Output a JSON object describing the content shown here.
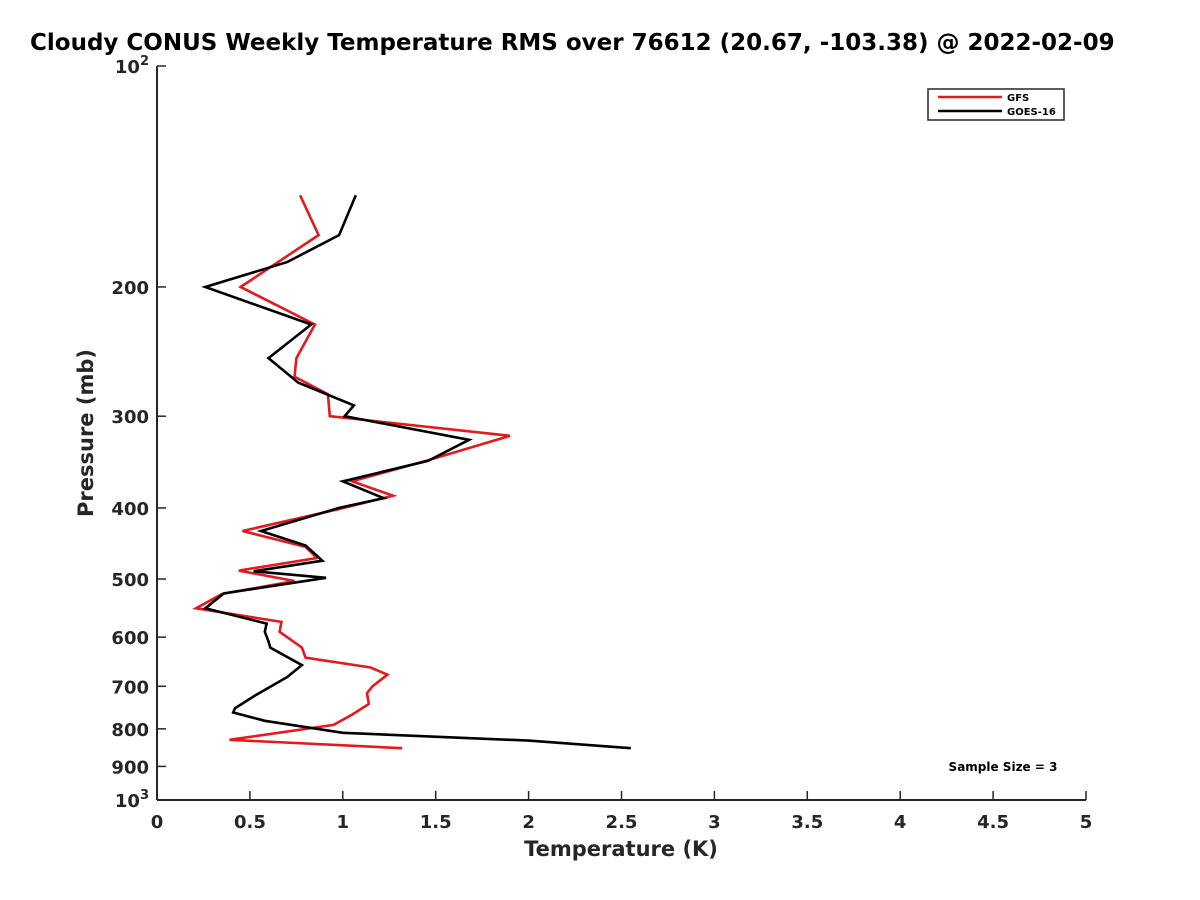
{
  "chart_data": {
    "type": "line",
    "title": "Cloudy CONUS Weekly Temperature RMS over 76612 (20.67, -103.38) @ 2022-02-09",
    "xlabel": "Temperature (K)",
    "ylabel": "Pressure (mb)",
    "xlim": [
      0,
      5
    ],
    "ylim": [
      1000,
      100
    ],
    "y_scale": "log",
    "y_reversed": true,
    "grid": false,
    "legend_position": "top-right",
    "x_ticks": [
      {
        "value": 0,
        "label": "0"
      },
      {
        "value": 0.5,
        "label": "0.5"
      },
      {
        "value": 1,
        "label": "1"
      },
      {
        "value": 1.5,
        "label": "1.5"
      },
      {
        "value": 2,
        "label": "2"
      },
      {
        "value": 2.5,
        "label": "2.5"
      },
      {
        "value": 3,
        "label": "3"
      },
      {
        "value": 3.5,
        "label": "3.5"
      },
      {
        "value": 4,
        "label": "4"
      },
      {
        "value": 4.5,
        "label": "4.5"
      },
      {
        "value": 5,
        "label": "5"
      }
    ],
    "y_ticks": [
      {
        "value": 100,
        "label": "10",
        "sup": "2"
      },
      {
        "value": 200,
        "label": "200"
      },
      {
        "value": 300,
        "label": "300"
      },
      {
        "value": 400,
        "label": "400"
      },
      {
        "value": 500,
        "label": "500"
      },
      {
        "value": 600,
        "label": "600"
      },
      {
        "value": 700,
        "label": "700"
      },
      {
        "value": 800,
        "label": "800"
      },
      {
        "value": 900,
        "label": "900"
      },
      {
        "value": 1000,
        "label": "10",
        "sup": "3"
      }
    ],
    "series": [
      {
        "name": "GFS",
        "color": "#e41a1c",
        "points": [
          [
            0.77,
            150
          ],
          [
            0.87,
            170
          ],
          [
            0.45,
            200
          ],
          [
            0.85,
            225
          ],
          [
            0.75,
            250
          ],
          [
            0.74,
            265
          ],
          [
            0.92,
            280
          ],
          [
            0.93,
            300
          ],
          [
            1.9,
            319
          ],
          [
            1.45,
            345
          ],
          [
            1.05,
            368
          ],
          [
            1.27,
            385
          ],
          [
            0.97,
            402
          ],
          [
            0.46,
            430
          ],
          [
            0.8,
            452
          ],
          [
            0.86,
            468
          ],
          [
            0.44,
            487
          ],
          [
            0.74,
            503
          ],
          [
            0.35,
            524
          ],
          [
            0.21,
            548
          ],
          [
            0.67,
            572
          ],
          [
            0.66,
            590
          ],
          [
            0.78,
            620
          ],
          [
            0.8,
            640
          ],
          [
            1.15,
            660
          ],
          [
            1.24,
            675
          ],
          [
            1.16,
            700
          ],
          [
            1.13,
            715
          ],
          [
            1.14,
            740
          ],
          [
            1.05,
            765
          ],
          [
            0.95,
            790
          ],
          [
            0.39,
            828
          ],
          [
            1.32,
            850
          ]
        ]
      },
      {
        "name": "GOES-16",
        "color": "#000000",
        "points": [
          [
            1.07,
            150
          ],
          [
            0.98,
            170
          ],
          [
            0.7,
            185
          ],
          [
            0.26,
            200
          ],
          [
            0.83,
            225
          ],
          [
            0.6,
            250
          ],
          [
            0.76,
            270
          ],
          [
            1.06,
            290
          ],
          [
            1.01,
            300
          ],
          [
            1.68,
            323
          ],
          [
            1.46,
            345
          ],
          [
            1.0,
            368
          ],
          [
            1.22,
            388
          ],
          [
            0.98,
            400
          ],
          [
            0.56,
            430
          ],
          [
            0.8,
            450
          ],
          [
            0.89,
            472
          ],
          [
            0.52,
            488
          ],
          [
            0.91,
            498
          ],
          [
            0.36,
            523
          ],
          [
            0.26,
            548
          ],
          [
            0.59,
            575
          ],
          [
            0.58,
            590
          ],
          [
            0.6,
            608
          ],
          [
            0.61,
            620
          ],
          [
            0.78,
            655
          ],
          [
            0.7,
            680
          ],
          [
            0.53,
            720
          ],
          [
            0.42,
            750
          ],
          [
            0.41,
            760
          ],
          [
            0.58,
            780
          ],
          [
            1.0,
            810
          ],
          [
            2.0,
            830
          ],
          [
            2.55,
            850
          ]
        ]
      }
    ],
    "annotation": "Sample Size = 3"
  }
}
